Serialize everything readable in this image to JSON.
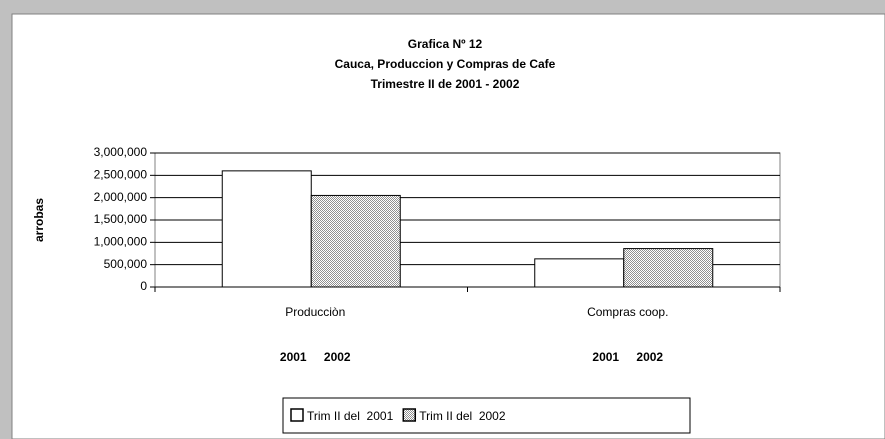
{
  "chart_data": {
    "type": "bar",
    "title": [
      "Grafica Nº 12",
      "Cauca, Produccion y Compras de Cafe",
      "Trimestre II de 2001 - 2002"
    ],
    "y_label": "arrobas",
    "categories": [
      "Producciòn",
      "Compras coop."
    ],
    "series": [
      {
        "name": "Trim II del  2001",
        "color": "#ffffff",
        "values": [
          2600000,
          630000
        ]
      },
      {
        "name": "Trim II del  2002",
        "color": "#c8c8c8",
        "values": [
          2050000,
          860000
        ]
      }
    ],
    "annotations": [
      "2001",
      "2002",
      "2001",
      "2002"
    ],
    "ylim": [
      0,
      3000000
    ],
    "yticks": [
      0,
      {
        "value": 500000,
        "label": "500,000"
      },
      {
        "value": 1000000,
        "label": "1,000,000"
      },
      {
        "value": 1500000,
        "label": "1,500,000"
      },
      {
        "value": 2000000,
        "label": "2,000,000"
      },
      {
        "value": 2500000,
        "label": "2,500,000"
      },
      {
        "value": 3000000,
        "label": "3,000,000"
      }
    ],
    "grid": true,
    "legend": "bottom"
  }
}
